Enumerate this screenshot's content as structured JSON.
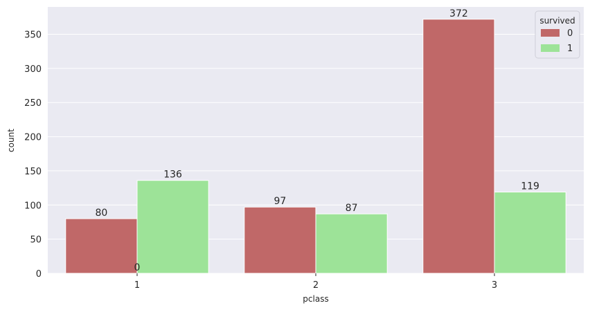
{
  "chart_data": {
    "type": "bar",
    "xlabel": "pclass",
    "ylabel": "count",
    "categories": [
      "1",
      "2",
      "3"
    ],
    "yticks": [
      0,
      50,
      100,
      150,
      200,
      250,
      300,
      350
    ],
    "ylim": [
      0,
      390
    ],
    "grid": true,
    "legend": {
      "title": "survived",
      "position": "top-right"
    },
    "series": [
      {
        "name": "0",
        "color": "#c06868",
        "values": [
          80,
          97,
          372
        ]
      },
      {
        "name": "1",
        "color": "#9de398",
        "values": [
          136,
          87,
          119
        ]
      }
    ],
    "annotations": [
      {
        "text": "0",
        "category": "1",
        "value": 0
      }
    ]
  }
}
